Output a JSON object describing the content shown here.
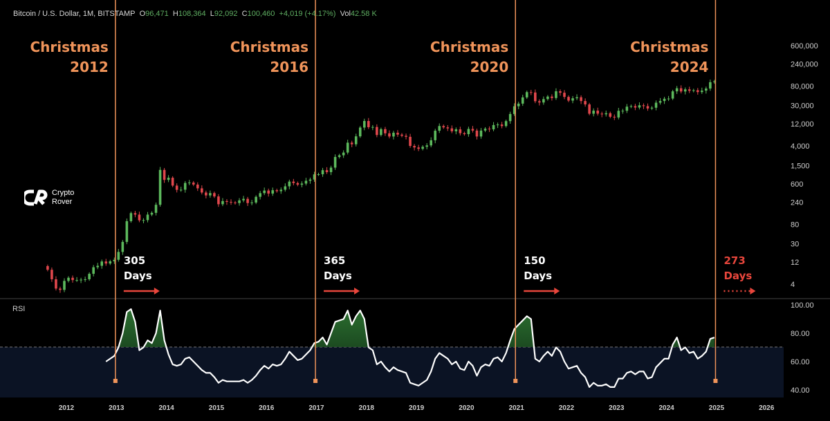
{
  "header": {
    "symbol": "Bitcoin / U.S. Dollar, 1M, BITSTAMP",
    "open_label": "O",
    "open": "96,471",
    "high_label": "H",
    "high": "108,364",
    "low_label": "L",
    "low": "92,092",
    "close_label": "C",
    "close": "100,460",
    "change": "+4,019 (+4.17%)",
    "vol_label": "Vol",
    "vol": "42.58 K"
  },
  "logo": {
    "line1": "Crypto",
    "line2": "Rover"
  },
  "colors": {
    "up": "#5cb85c",
    "down": "#e0474c",
    "marker": "#f0945a",
    "arrow": "#e8463c",
    "rsi_zone": "#0b1324"
  },
  "events": [
    {
      "title": "Christmas",
      "year": "2012",
      "date": 2012.98,
      "days": "305",
      "days_label": "Days",
      "projected": false
    },
    {
      "title": "Christmas",
      "year": "2016",
      "date": 2016.98,
      "days": "365",
      "days_label": "Days",
      "projected": false
    },
    {
      "title": "Christmas",
      "year": "2020",
      "date": 2020.98,
      "days": "150",
      "days_label": "Days",
      "projected": false
    },
    {
      "title": "Christmas",
      "year": "2024",
      "date": 2024.98,
      "days": "273",
      "days_label": "Days",
      "projected": true
    }
  ],
  "chart_data": [
    {
      "type": "candlestick",
      "title": "Bitcoin / U.S. Dollar, 1M, BITSTAMP",
      "yscale": "log",
      "ylim": [
        2,
        1000000
      ],
      "y_ticks": [
        600000,
        240000,
        80000,
        30000,
        12000,
        4000,
        1500,
        600,
        240,
        80,
        30,
        12,
        4
      ],
      "y_tick_labels": [
        "600,000",
        "240,000",
        "80,000",
        "30,000",
        "12,000",
        "4,000",
        "1,500",
        "600",
        "240",
        "80",
        "30",
        "12",
        "4"
      ],
      "start": "2011-08",
      "closes": [
        8.2,
        5.1,
        3.2,
        3,
        4.7,
        5.5,
        4.9,
        4.9,
        5,
        5.1,
        6.7,
        9.3,
        10,
        12.4,
        11.2,
        12.5,
        13.5,
        20,
        33,
        93,
        139,
        129,
        97,
        98,
        129,
        141,
        211,
        1205,
        732,
        815,
        550,
        445,
        448,
        628,
        640,
        579,
        480,
        389,
        337,
        378,
        320,
        217,
        254,
        244,
        236,
        230,
        263,
        284,
        230,
        236,
        314,
        377,
        430,
        369,
        437,
        416,
        448,
        531,
        673,
        624,
        575,
        609,
        700,
        745,
        964,
        970,
        1190,
        1080,
        1350,
        2300,
        2500,
        2870,
        4700,
        4340,
        6450,
        10000,
        13900,
        10200,
        10300,
        6900,
        9240,
        7500,
        6400,
        7730,
        7030,
        6630,
        6300,
        4000,
        3700,
        3450,
        3830,
        4100,
        5300,
        8550,
        10800,
        10100,
        9600,
        8300,
        9150,
        7550,
        7200,
        9350,
        8600,
        6400,
        8600,
        9450,
        9140,
        11350,
        11650,
        10780,
        13800,
        19700,
        28990,
        33100,
        45200,
        58800,
        57700,
        37300,
        35000,
        41500,
        47100,
        43800,
        61300,
        57000,
        46300,
        38500,
        43200,
        45500,
        37700,
        31800,
        19950,
        23300,
        20050,
        19420,
        20500,
        17170,
        16550,
        23100,
        23150,
        28450,
        29250,
        27200,
        30470,
        29230,
        25940,
        26970,
        34650,
        37720,
        42260,
        42580,
        61130,
        71330,
        60670,
        67490,
        62700,
        64620,
        58970,
        63330,
        70290,
        96471,
        100460
      ]
    },
    {
      "type": "line",
      "title": "RSI",
      "ylim": [
        35,
        103
      ],
      "y_ticks": [
        100,
        80,
        60,
        40
      ],
      "y_tick_labels": [
        "100.00",
        "80.00",
        "60.00",
        "40.00"
      ],
      "overbought": 70,
      "start": "2012-10",
      "values": [
        60,
        62,
        64,
        70,
        80,
        95,
        97,
        88,
        68,
        70,
        75,
        73,
        80,
        96,
        75,
        65,
        58,
        57,
        58,
        62,
        63,
        60,
        57,
        54,
        52,
        52,
        49,
        45,
        47,
        46,
        46,
        46,
        46,
        47,
        45,
        47,
        50,
        54,
        57,
        55,
        58,
        57,
        58,
        62,
        67,
        64,
        61,
        62,
        65,
        68,
        73,
        74,
        77,
        72,
        80,
        88,
        89,
        90,
        96,
        86,
        92,
        96,
        90,
        70,
        68,
        58,
        60,
        56,
        53,
        56,
        54,
        53,
        52,
        45,
        44,
        43,
        45,
        47,
        53,
        62,
        66,
        64,
        62,
        58,
        60,
        55,
        54,
        60,
        57,
        50,
        56,
        58,
        57,
        62,
        63,
        60,
        66,
        75,
        83,
        86,
        89,
        92,
        90,
        62,
        60,
        64,
        67,
        64,
        70,
        67,
        60,
        55,
        56,
        57,
        52,
        49,
        42,
        45,
        43,
        43,
        44,
        42,
        42,
        48,
        48,
        52,
        53,
        51,
        53,
        53,
        48,
        49,
        56,
        59,
        62,
        62,
        72,
        77,
        68,
        70,
        66,
        67,
        62,
        64,
        67,
        76,
        77
      ]
    }
  ],
  "x_axis": {
    "labels": [
      "2012",
      "2013",
      "2014",
      "2015",
      "2016",
      "2017",
      "2018",
      "2019",
      "2020",
      "2021",
      "2022",
      "2023",
      "2024",
      "2025",
      "2026"
    ]
  }
}
